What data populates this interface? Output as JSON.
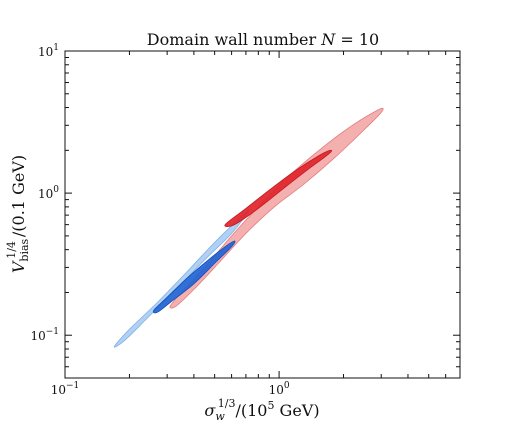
{
  "chart_data": {
    "type": "scatter",
    "title": "Domain wall number N = 10",
    "title_prefix": "Domain wall number ",
    "title_var": "N",
    "title_suffix": " = 10",
    "xlabel": "σ_w^{1/3}/(10^5 GeV)",
    "ylabel": "V_bias^{1/4}/(0.1 GeV)",
    "x_scale": "log",
    "y_scale": "log",
    "xlim": [
      0.1,
      7.0
    ],
    "ylim": [
      0.05,
      10
    ],
    "x_ticks": [
      {
        "label": "10",
        "exp": "−1",
        "value": 0.1
      },
      {
        "label": "10",
        "exp": "0",
        "value": 1
      }
    ],
    "y_ticks": [
      {
        "label": "10",
        "exp": "−1",
        "value": 0.1
      },
      {
        "label": "10",
        "exp": "0",
        "value": 1
      },
      {
        "label": "10",
        "exp": "1",
        "value": 10
      }
    ],
    "grid": false,
    "series": [
      {
        "region": "blue-outer",
        "color": "#a9cdf2",
        "edge": "#7fb1e6",
        "points": [
          [
            0.17,
            0.083
          ],
          [
            0.2,
            0.11
          ],
          [
            0.27,
            0.17
          ],
          [
            0.38,
            0.29
          ],
          [
            0.5,
            0.45
          ],
          [
            0.65,
            0.66
          ],
          [
            0.72,
            0.75
          ],
          [
            0.6,
            0.52
          ],
          [
            0.45,
            0.34
          ],
          [
            0.34,
            0.22
          ],
          [
            0.24,
            0.13
          ],
          [
            0.19,
            0.092
          ]
        ]
      },
      {
        "region": "red-outer",
        "color": "#f3a8a8",
        "edge": "#e37c7c",
        "points": [
          [
            0.31,
            0.16
          ],
          [
            0.35,
            0.2
          ],
          [
            0.45,
            0.3
          ],
          [
            0.6,
            0.5
          ],
          [
            0.8,
            0.8
          ],
          [
            1.1,
            1.3
          ],
          [
            1.6,
            2.1
          ],
          [
            2.2,
            3.0
          ],
          [
            2.95,
            3.9
          ],
          [
            3.0,
            3.7
          ],
          [
            2.5,
            2.8
          ],
          [
            1.8,
            1.75
          ],
          [
            1.3,
            1.15
          ],
          [
            0.95,
            0.8
          ],
          [
            0.7,
            0.52
          ],
          [
            0.52,
            0.32
          ],
          [
            0.4,
            0.21
          ],
          [
            0.33,
            0.16
          ]
        ]
      },
      {
        "region": "red-inner",
        "color": "#e0232a",
        "edge": "#c21a20",
        "points": [
          [
            0.56,
            0.6
          ],
          [
            0.7,
            0.78
          ],
          [
            0.9,
            1.05
          ],
          [
            1.2,
            1.45
          ],
          [
            1.55,
            1.85
          ],
          [
            1.75,
            2.0
          ],
          [
            1.68,
            1.85
          ],
          [
            1.35,
            1.45
          ],
          [
            1.05,
            1.08
          ],
          [
            0.8,
            0.78
          ],
          [
            0.62,
            0.6
          ]
        ]
      },
      {
        "region": "blue-inner",
        "color": "#1f63d6",
        "edge": "#184fb0",
        "points": [
          [
            0.26,
            0.15
          ],
          [
            0.3,
            0.185
          ],
          [
            0.38,
            0.26
          ],
          [
            0.48,
            0.35
          ],
          [
            0.56,
            0.42
          ],
          [
            0.62,
            0.46
          ],
          [
            0.6,
            0.42
          ],
          [
            0.5,
            0.32
          ],
          [
            0.4,
            0.23
          ],
          [
            0.31,
            0.17
          ],
          [
            0.27,
            0.145
          ]
        ]
      }
    ]
  }
}
